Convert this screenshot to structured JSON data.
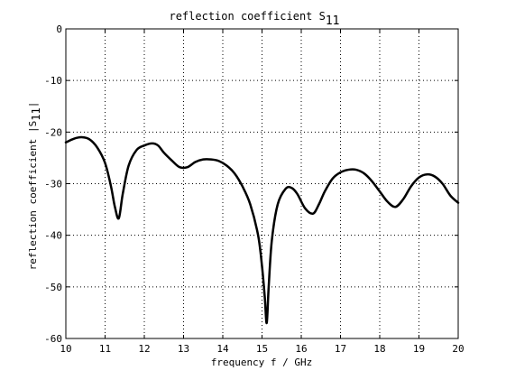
{
  "chart_data": {
    "type": "line",
    "title_main": "reflection coefficient S",
    "title_sub": "11",
    "xlabel": "frequency f / GHz",
    "ylabel_pre": "reflection coefficient |S",
    "ylabel_sub": "11",
    "ylabel_post": "|",
    "xlim": [
      10,
      20
    ],
    "ylim": [
      -60,
      0
    ],
    "xticks": [
      "10",
      "11",
      "12",
      "13",
      "14",
      "15",
      "16",
      "17",
      "18",
      "19",
      "20"
    ],
    "yticks": [
      "0",
      "-10",
      "-20",
      "-30",
      "-40",
      "-50",
      "-60"
    ],
    "grid": true,
    "series": [
      {
        "color": "#000000",
        "x": [
          10.0,
          10.2,
          10.4,
          10.6,
          10.8,
          11.0,
          11.15,
          11.25,
          11.35,
          11.45,
          11.6,
          11.8,
          12.0,
          12.2,
          12.35,
          12.5,
          12.7,
          12.9,
          13.1,
          13.3,
          13.5,
          13.7,
          13.9,
          14.1,
          14.3,
          14.5,
          14.7,
          14.9,
          15.0,
          15.07,
          15.12,
          15.17,
          15.25,
          15.4,
          15.6,
          15.75,
          15.9,
          16.1,
          16.3,
          16.45,
          16.6,
          16.8,
          17.0,
          17.2,
          17.4,
          17.6,
          17.8,
          18.0,
          18.2,
          18.4,
          18.6,
          18.8,
          19.0,
          19.2,
          19.4,
          19.6,
          19.8,
          20.0
        ],
        "y": [
          -22.0,
          -21.3,
          -21.0,
          -21.4,
          -23.0,
          -26.0,
          -30.5,
          -34.5,
          -36.7,
          -32.0,
          -26.5,
          -23.5,
          -22.6,
          -22.2,
          -22.6,
          -24.0,
          -25.5,
          -26.8,
          -26.8,
          -25.8,
          -25.3,
          -25.3,
          -25.6,
          -26.5,
          -28.0,
          -30.5,
          -34.0,
          -40.0,
          -46.0,
          -52.0,
          -57.0,
          -50.0,
          -41.0,
          -34.0,
          -31.0,
          -30.8,
          -32.0,
          -34.8,
          -35.8,
          -34.0,
          -31.5,
          -29.0,
          -27.8,
          -27.3,
          -27.3,
          -28.0,
          -29.5,
          -31.5,
          -33.5,
          -34.5,
          -33.0,
          -30.5,
          -28.8,
          -28.2,
          -28.6,
          -30.0,
          -32.3,
          -33.7
        ]
      }
    ]
  }
}
